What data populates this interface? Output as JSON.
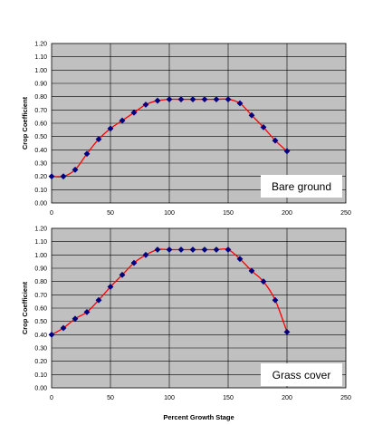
{
  "colors": {
    "plot_background": "#c0c0c0",
    "grid": "#000000",
    "line": "#ff0000",
    "marker": "#000080",
    "label_box": "#ffffff"
  },
  "chart_data": [
    {
      "type": "line",
      "label": "Bare ground",
      "ylabel": "Crop Coefficient",
      "xlabel": "",
      "xlim": [
        0,
        250
      ],
      "ylim": [
        0,
        1.2
      ],
      "xticks": [
        "0",
        "50",
        "100",
        "150",
        "200",
        "250"
      ],
      "yticks": [
        "0.00",
        "0.10",
        "0.20",
        "0.30",
        "0.40",
        "0.50",
        "0.60",
        "0.70",
        "0.80",
        "0.90",
        "1.00",
        "1.10",
        "1.20"
      ],
      "grid": true,
      "series": [
        {
          "x": [
            0,
            10,
            20,
            30,
            40,
            50,
            60,
            70,
            80,
            90,
            100,
            110,
            120,
            130,
            140,
            150,
            160,
            170,
            180,
            190,
            200
          ],
          "y": [
            0.2,
            0.2,
            0.25,
            0.37,
            0.48,
            0.56,
            0.62,
            0.68,
            0.74,
            0.77,
            0.78,
            0.78,
            0.78,
            0.78,
            0.78,
            0.78,
            0.75,
            0.66,
            0.57,
            0.47,
            0.39
          ]
        }
      ]
    },
    {
      "type": "line",
      "label": "Grass cover",
      "ylabel": "Crop Coefficient",
      "xlabel": "Percent Growth Stage",
      "xlim": [
        0,
        250
      ],
      "ylim": [
        0,
        1.2
      ],
      "xticks": [
        "0",
        "50",
        "100",
        "150",
        "200",
        "250"
      ],
      "yticks": [
        "0.00",
        "0.10",
        "0.20",
        "0.30",
        "0.40",
        "0.50",
        "0.60",
        "0.70",
        "0.80",
        "0.90",
        "1.00",
        "1.10",
        "1.20"
      ],
      "grid": true,
      "series": [
        {
          "x": [
            0,
            10,
            20,
            30,
            40,
            50,
            60,
            70,
            80,
            90,
            100,
            110,
            120,
            130,
            140,
            150,
            160,
            170,
            180,
            190,
            200
          ],
          "y": [
            0.4,
            0.45,
            0.52,
            0.57,
            0.66,
            0.76,
            0.85,
            0.94,
            1.0,
            1.04,
            1.04,
            1.04,
            1.04,
            1.04,
            1.04,
            1.04,
            0.97,
            0.88,
            0.8,
            0.66,
            0.42
          ]
        }
      ]
    }
  ]
}
